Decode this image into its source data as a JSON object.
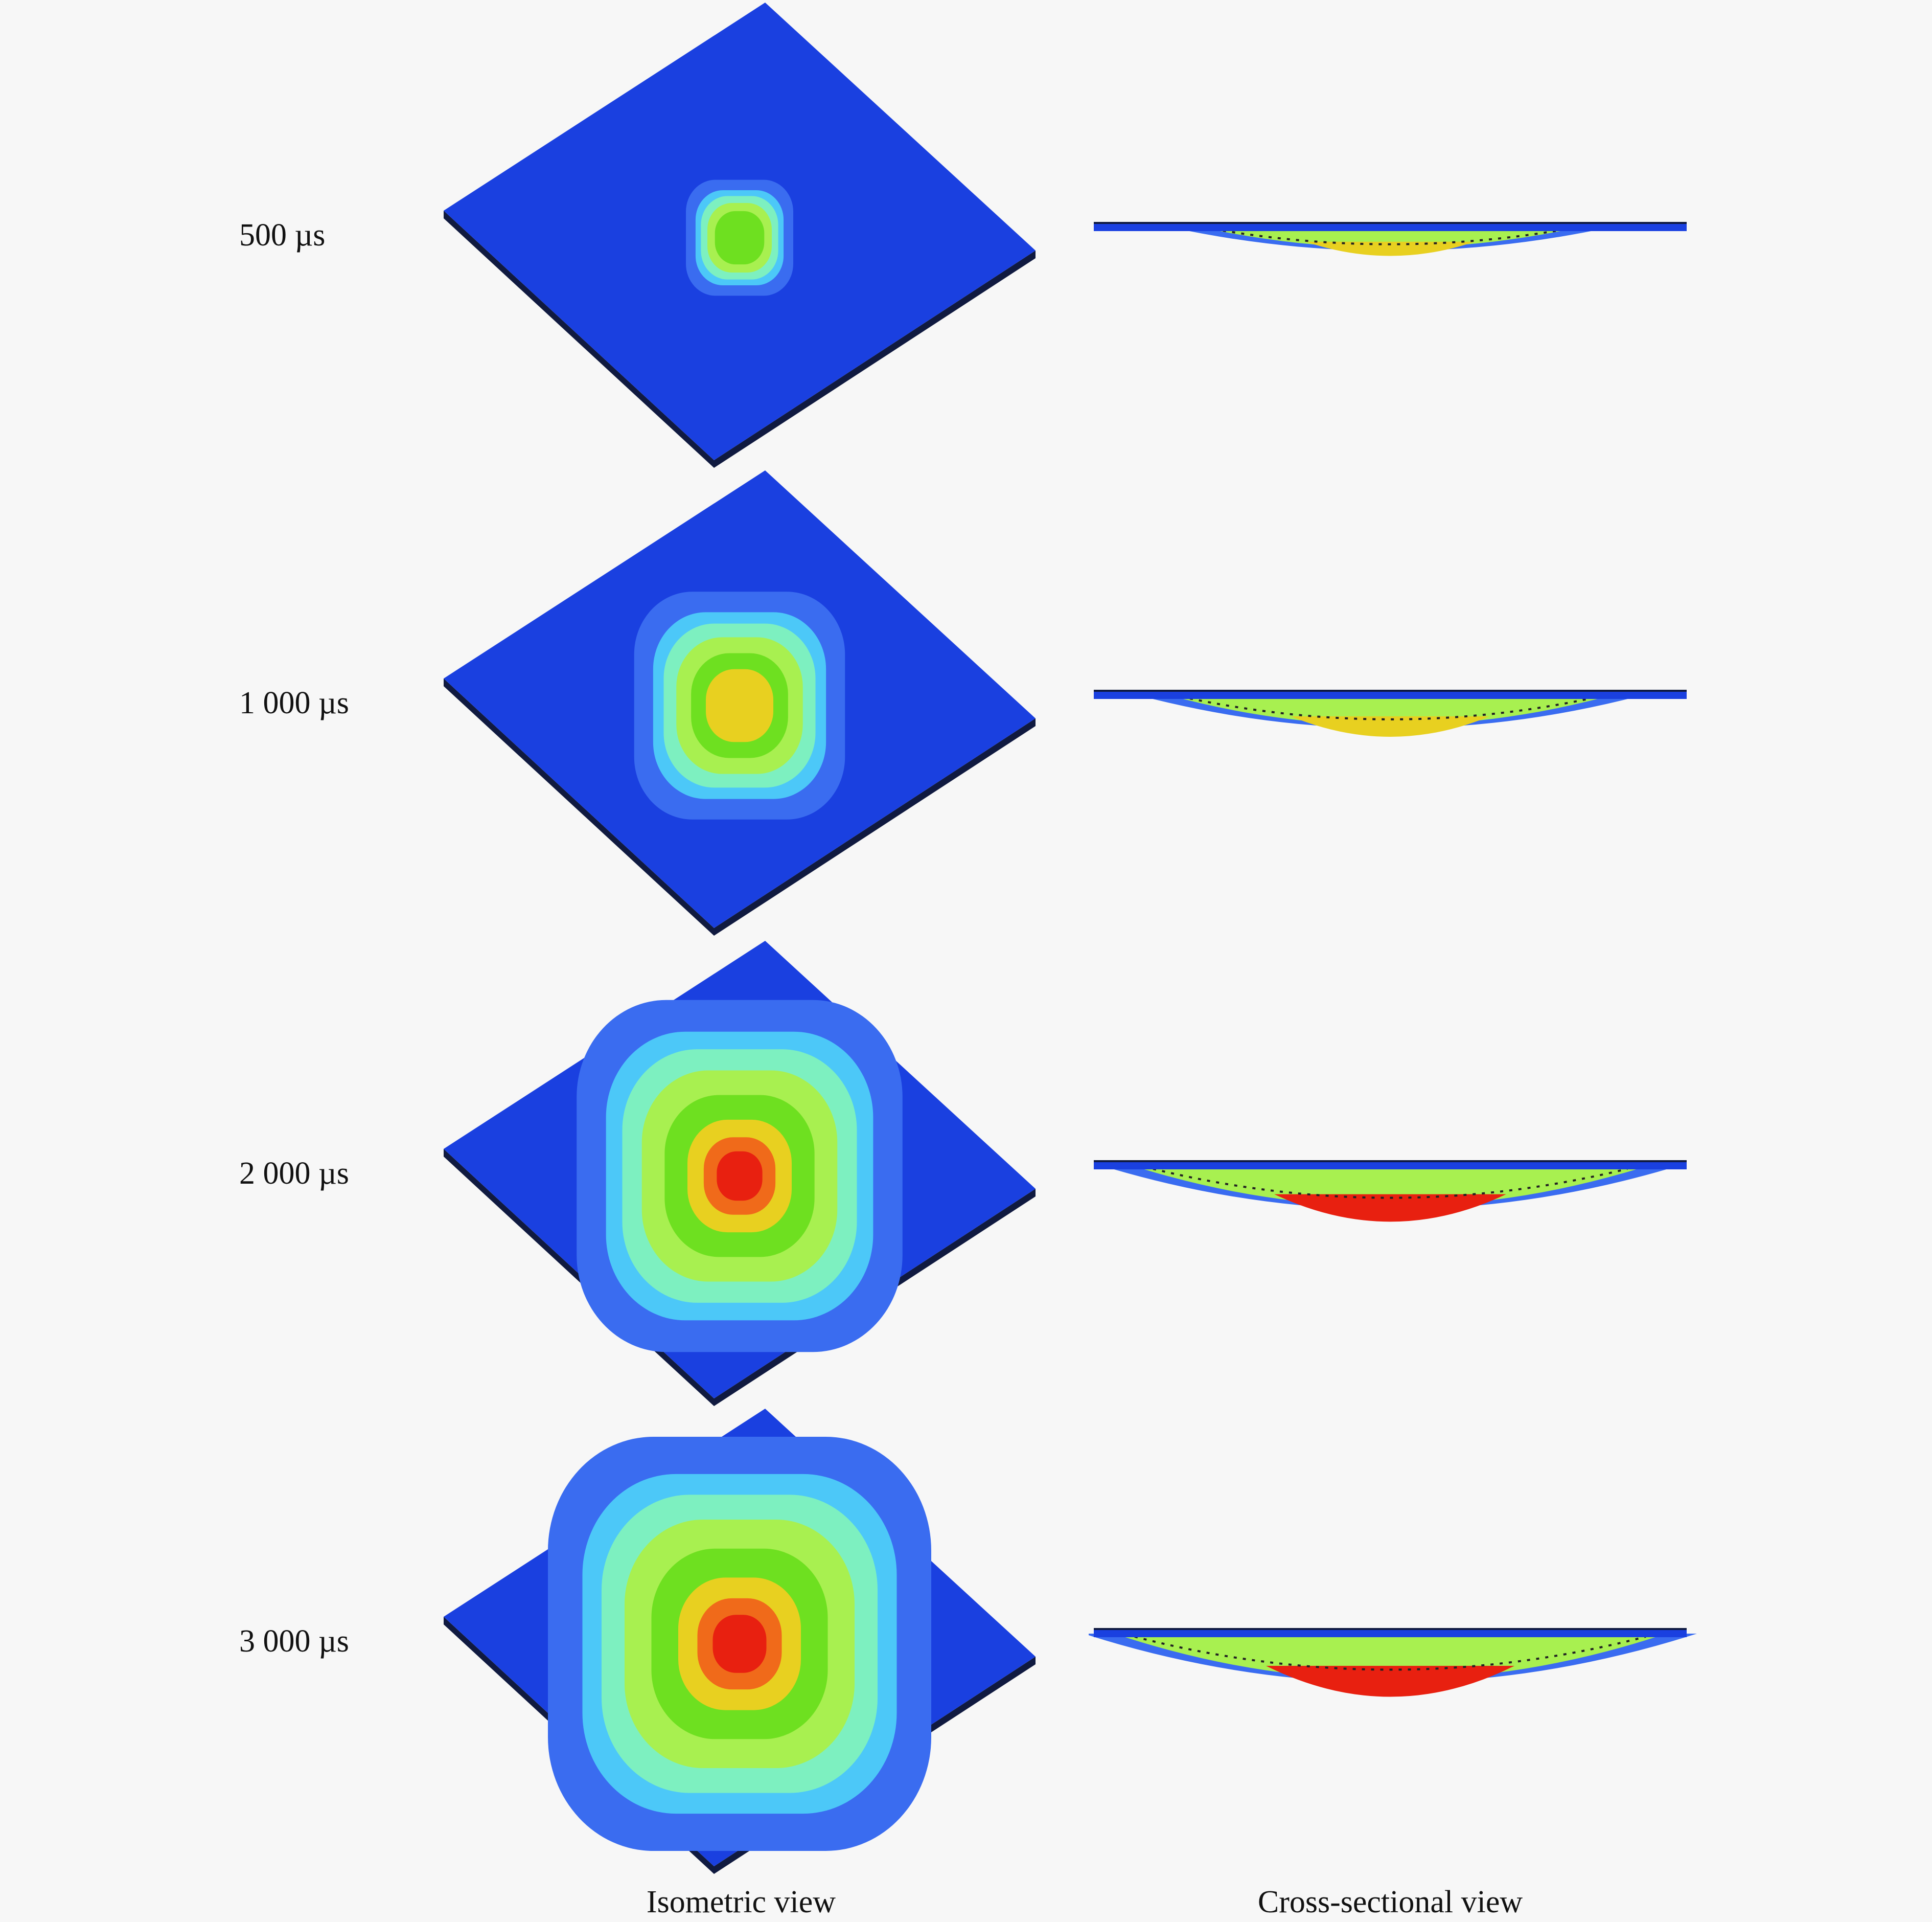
{
  "rows": [
    {
      "time_label": "500 µs",
      "intensity": 0.28
    },
    {
      "time_label": "1 000 µs",
      "intensity": 0.55
    },
    {
      "time_label": "2 000 µs",
      "intensity": 0.85
    },
    {
      "time_label": "3 000 µs",
      "intensity": 1.0
    }
  ],
  "columns": {
    "isometric": "Isometric view",
    "cross_section": "Cross-sectional view"
  },
  "colors": {
    "plate": "#1a40e0",
    "edge": "#101a40",
    "contours": [
      "#3a6cf0",
      "#4cc8f8",
      "#7df0c0",
      "#a8f050",
      "#6ee020",
      "#e8d020",
      "#f06a1a",
      "#e82010"
    ]
  }
}
